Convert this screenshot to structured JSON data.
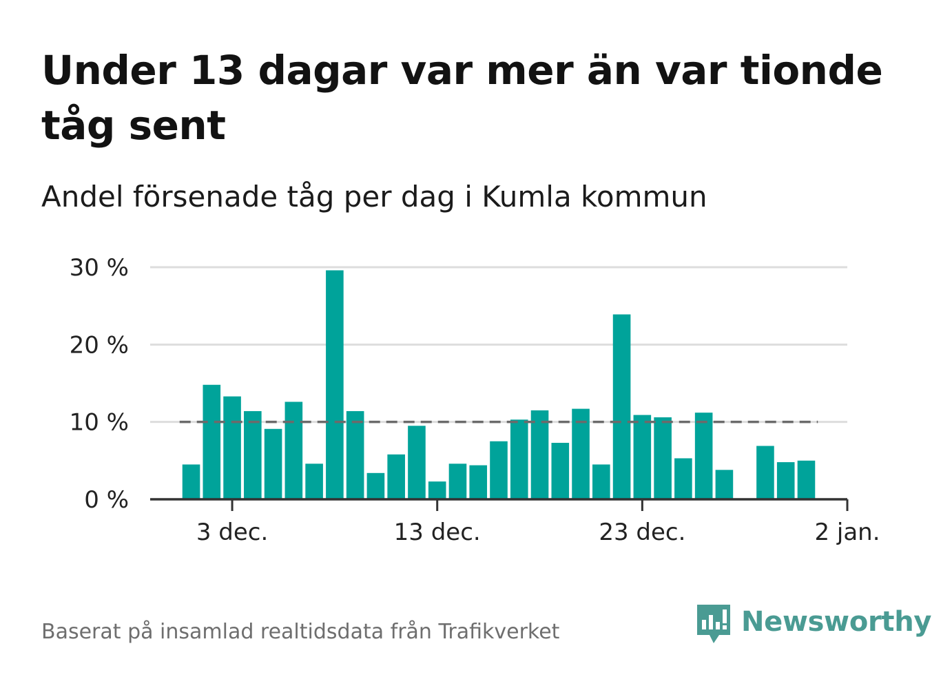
{
  "title": "Under 13 dagar var mer än var tionde tåg sent",
  "subtitle": "Andel försenade tåg per dag i Kumla kommun",
  "footer": {
    "source": "Baserat på insamlad realtidsdata från Trafikverket",
    "brand": "Newsworthy"
  },
  "colors": {
    "bar": "#00a39a",
    "reference_line": "#6b6b6b",
    "gridline": "#dddddd",
    "axis": "#333333",
    "brand": "#4a9b93"
  },
  "chart_data": {
    "type": "bar",
    "title": "Under 13 dagar var mer än var tionde tåg sent",
    "subtitle": "Andel försenade tåg per dag i Kumla kommun",
    "xlabel": "",
    "ylabel": "",
    "x_start_day": 1,
    "x_range_days": [
      -1,
      33
    ],
    "x_ticks": [
      {
        "day": 3,
        "label": "3 dec."
      },
      {
        "day": 13,
        "label": "13 dec."
      },
      {
        "day": 23,
        "label": "23 dec."
      },
      {
        "day": 33,
        "label": "2 jan."
      }
    ],
    "ylim": [
      0,
      30
    ],
    "y_ticks": [
      {
        "value": 0,
        "label": "0 %"
      },
      {
        "value": 10,
        "label": "10 %"
      },
      {
        "value": 20,
        "label": "20 %"
      },
      {
        "value": 30,
        "label": "30 %"
      }
    ],
    "values": [
      4.5,
      14.8,
      13.3,
      11.4,
      9.1,
      12.6,
      4.6,
      29.6,
      11.4,
      3.4,
      5.8,
      9.5,
      2.3,
      4.6,
      4.4,
      7.5,
      10.3,
      11.5,
      7.3,
      11.7,
      4.5,
      23.9,
      10.9,
      10.6,
      5.3,
      11.2,
      3.8,
      null,
      6.9,
      4.8,
      5.0
    ],
    "reference_line": {
      "value": 10,
      "style": "dashed"
    },
    "grid": true,
    "legend": "none"
  }
}
